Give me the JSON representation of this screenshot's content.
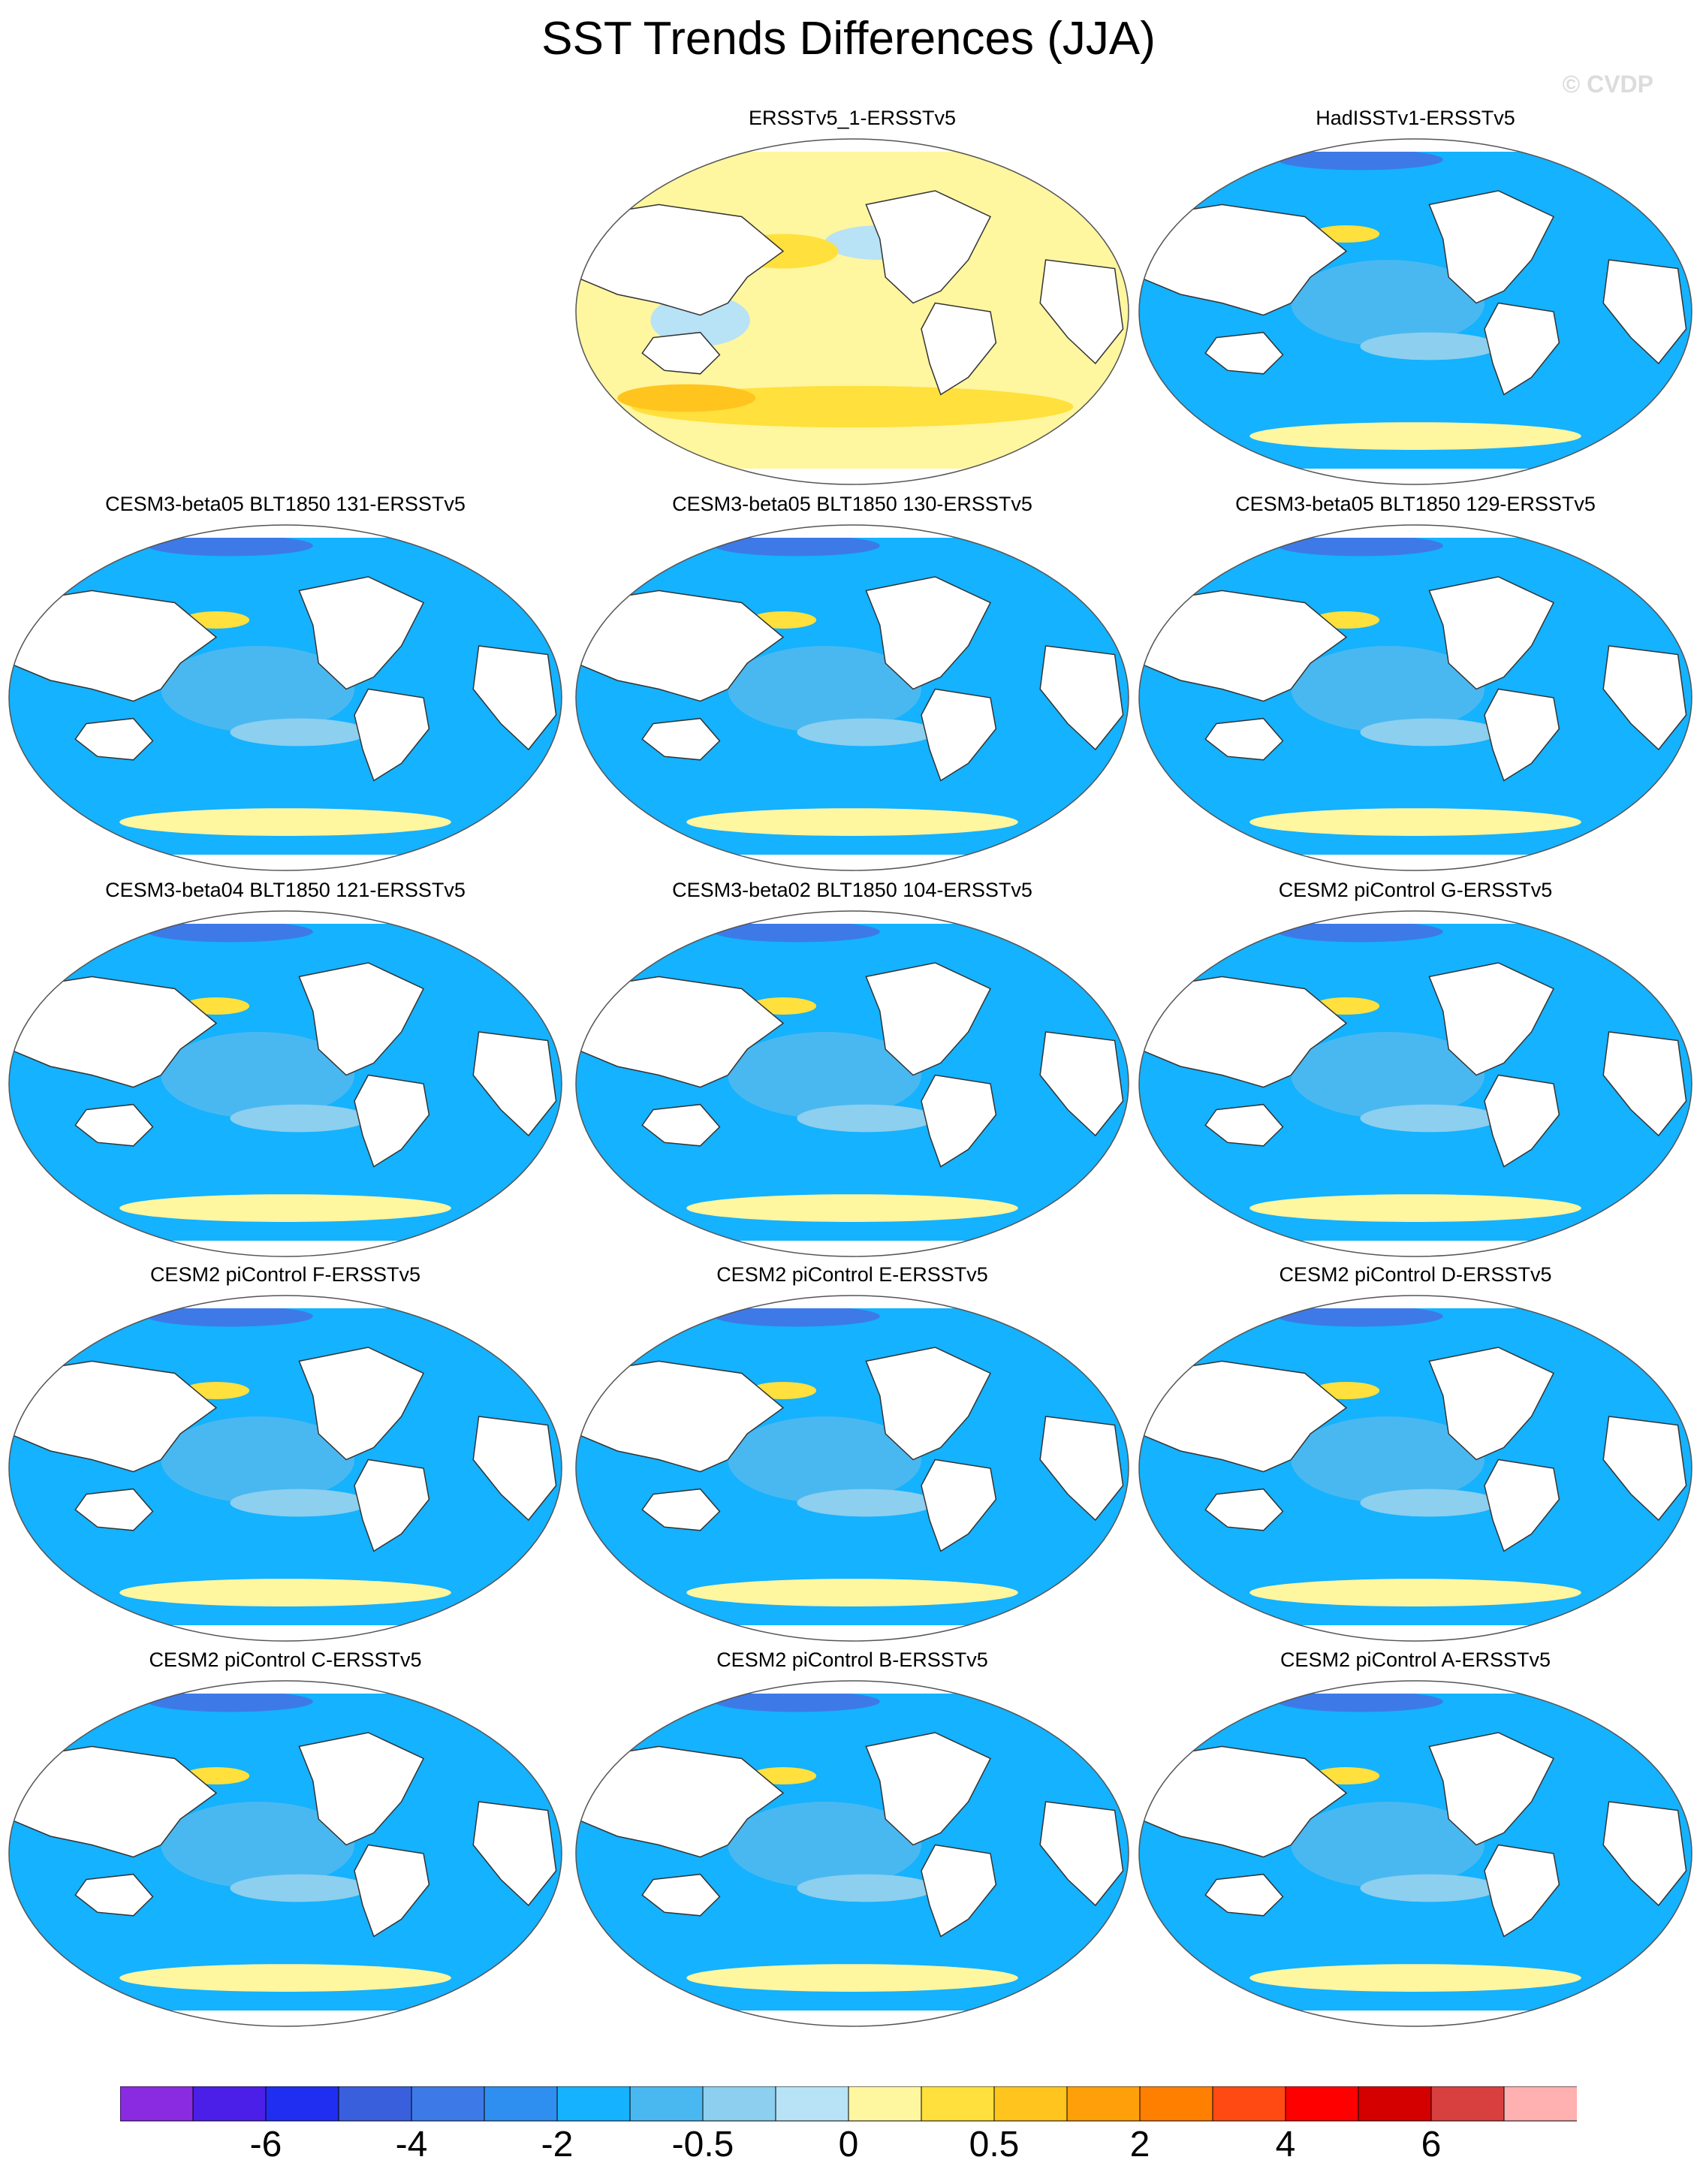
{
  "title": "SST Trends Differences (JJA)",
  "watermark": "© CVDP",
  "panels": [
    {
      "title": "ERSSTv5_1-ERSSTv5",
      "base": "yellow"
    },
    {
      "title": "HadISSTv1-ERSSTv5",
      "base": "blue"
    },
    {
      "title": "CESM3-beta05 BLT1850 131-ERSSTv5",
      "base": "blue"
    },
    {
      "title": "CESM3-beta05 BLT1850 130-ERSSTv5",
      "base": "blue"
    },
    {
      "title": "CESM3-beta05 BLT1850 129-ERSSTv5",
      "base": "blue"
    },
    {
      "title": "CESM3-beta04 BLT1850 121-ERSSTv5",
      "base": "blue"
    },
    {
      "title": "CESM3-beta02 BLT1850 104-ERSSTv5",
      "base": "blue"
    },
    {
      "title": "CESM2 piControl G-ERSSTv5",
      "base": "blue"
    },
    {
      "title": "CESM2 piControl F-ERSSTv5",
      "base": "blue"
    },
    {
      "title": "CESM2 piControl E-ERSSTv5",
      "base": "blue"
    },
    {
      "title": "CESM2 piControl D-ERSSTv5",
      "base": "blue"
    },
    {
      "title": "CESM2 piControl C-ERSSTv5",
      "base": "blue"
    },
    {
      "title": "CESM2 piControl B-ERSSTv5",
      "base": "blue"
    },
    {
      "title": "CESM2 piControl A-ERSSTv5",
      "base": "blue"
    }
  ],
  "colorbar": {
    "colors": [
      "#8a2be2",
      "#4b1fe8",
      "#1f2ef0",
      "#3a5fdd",
      "#3d7ae8",
      "#2f8ff0",
      "#14b2ff",
      "#4ab8f0",
      "#8ccfef",
      "#b8e2f5",
      "#fff6a0",
      "#ffe03c",
      "#ffc41e",
      "#ffa00a",
      "#ff7f00",
      "#ff4a14",
      "#ff0000",
      "#d40000",
      "#d84040",
      "#ffb0b0"
    ],
    "labels": [
      "-6",
      "-4",
      "-2",
      "-0.5",
      "0",
      "0.5",
      "2",
      "4",
      "6"
    ]
  }
}
